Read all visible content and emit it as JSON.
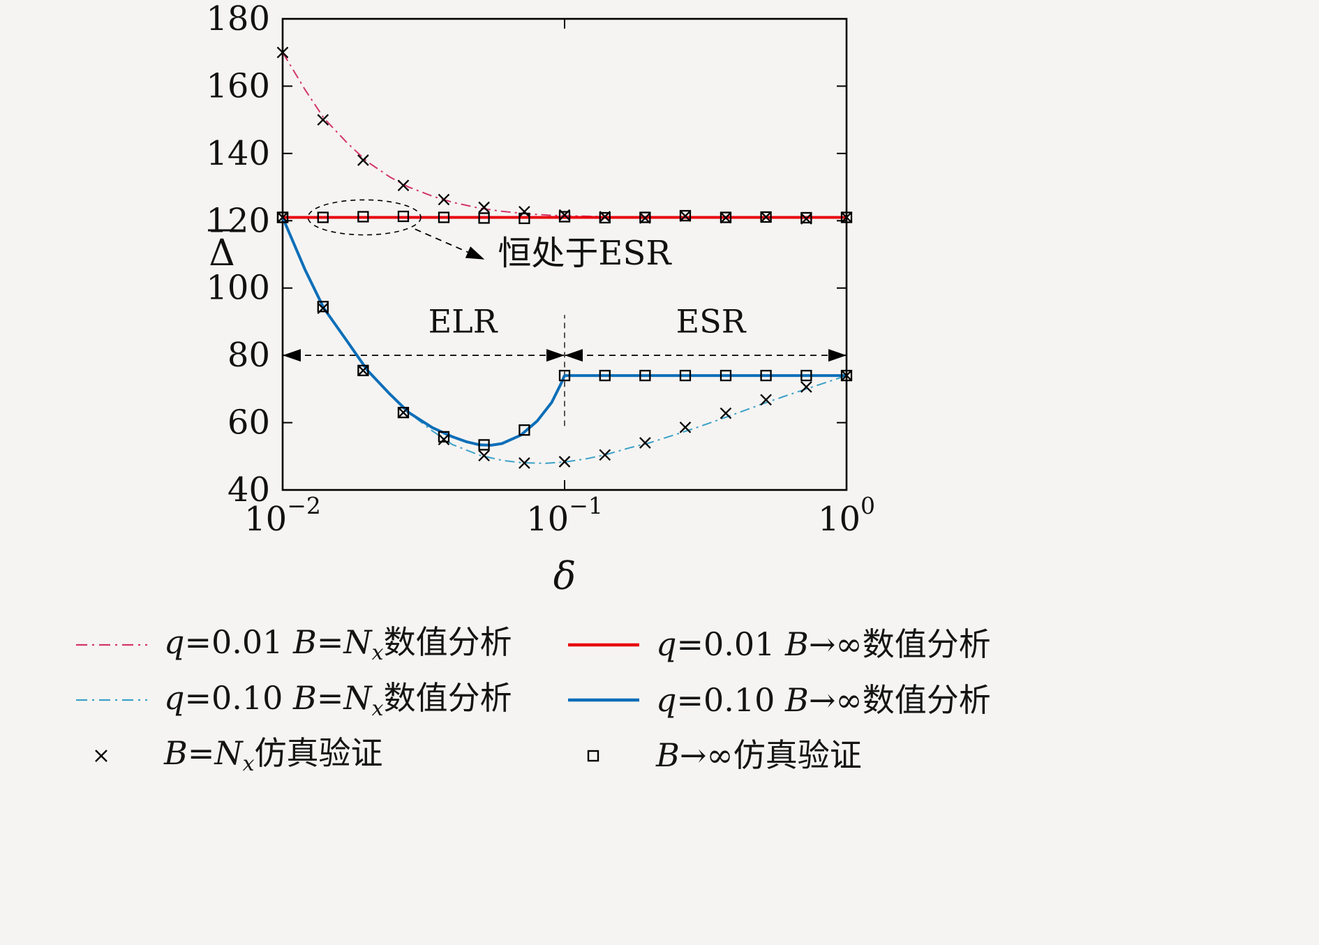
{
  "colors": {
    "background": "#f5f4f2",
    "red_solid": "#e8000b",
    "red_dashdot": "#d4356b",
    "blue_solid": "#0d6eb8",
    "blue_dashdot": "#3aa0c8",
    "marker": "#000000"
  },
  "chart_data": {
    "type": "line",
    "title": "",
    "xlabel": "δ",
    "ylabel": "Δ̄",
    "x_scale": "log",
    "xlim": [
      0.01,
      1.0
    ],
    "ylim": [
      40,
      180
    ],
    "grid": false,
    "legend_position": "below",
    "x_ticks": [
      {
        "value": 0.01,
        "base": "10",
        "exp": "−2"
      },
      {
        "value": 0.1,
        "base": "10",
        "exp": "−1"
      },
      {
        "value": 1.0,
        "base": "10",
        "exp": "0"
      }
    ],
    "y_ticks": [
      40,
      60,
      80,
      100,
      120,
      140,
      160,
      180
    ],
    "series": [
      {
        "name": "q=0.01 B=Nx 数值分析",
        "kind": "line",
        "dash": "dashdot",
        "color": "#d4356b",
        "width": 2,
        "x": [
          0.01,
          0.012,
          0.014,
          0.017,
          0.02,
          0.024,
          0.028,
          0.034,
          0.04,
          0.05,
          0.06,
          0.075,
          0.09,
          0.11,
          0.14,
          0.2,
          0.3,
          0.5,
          0.7,
          1.0
        ],
        "y": [
          170,
          159,
          150.5,
          143,
          137.5,
          133,
          130,
          127.3,
          125.5,
          123.7,
          122.8,
          122,
          121.6,
          121.4,
          121.2,
          121.1,
          121,
          121,
          121,
          121
        ]
      },
      {
        "name": "q=0.01 B→∞ 数值分析",
        "kind": "line",
        "dash": "solid",
        "color": "#e8000b",
        "width": 4,
        "x": [
          0.01,
          1.0
        ],
        "y": [
          121,
          121
        ]
      },
      {
        "name": "q=0.10 B=Nx 数值分析",
        "kind": "line",
        "dash": "dashdot",
        "color": "#3aa0c8",
        "width": 2,
        "x": [
          0.01,
          0.012,
          0.014,
          0.017,
          0.02,
          0.024,
          0.028,
          0.034,
          0.04,
          0.05,
          0.06,
          0.07,
          0.085,
          0.1,
          0.12,
          0.14,
          0.17,
          0.2,
          0.25,
          0.3,
          0.4,
          0.5,
          0.6,
          0.75,
          0.85,
          1.0
        ],
        "y": [
          121,
          105.5,
          94,
          84,
          75.5,
          68.5,
          63,
          57.5,
          53.5,
          50.3,
          48.8,
          48.1,
          47.9,
          48.3,
          49.3,
          50.5,
          52.5,
          54,
          56.6,
          58.8,
          62.5,
          65.5,
          67.8,
          70.5,
          72,
          74
        ]
      },
      {
        "name": "q=0.10 B→∞ 数值分析",
        "kind": "line",
        "dash": "solid",
        "color": "#0d6eb8",
        "width": 4,
        "x": [
          0.01,
          0.012,
          0.014,
          0.017,
          0.02,
          0.024,
          0.028,
          0.034,
          0.04,
          0.045,
          0.05,
          0.055,
          0.06,
          0.07,
          0.08,
          0.09,
          0.097,
          0.1,
          0.15,
          0.3,
          0.6,
          1.0
        ],
        "y": [
          121,
          105.5,
          94,
          84,
          75.5,
          68.5,
          63,
          58.5,
          55.8,
          54.3,
          53.4,
          53.3,
          53.8,
          56.3,
          60.5,
          66,
          71.5,
          74,
          74,
          74,
          74,
          74
        ]
      },
      {
        "name": "B=Nx 仿真验证 (q=0.01)",
        "kind": "scatter",
        "marker": "x",
        "color": "#000000",
        "x": [
          0.01,
          0.0139,
          0.0193,
          0.0268,
          0.0373,
          0.0518,
          0.072,
          0.1,
          0.139,
          0.193,
          0.268,
          0.373,
          0.518,
          0.72,
          1.0
        ],
        "y": [
          170,
          150,
          138,
          130.5,
          126.3,
          124,
          122.7,
          121.7,
          121.2,
          120.8,
          121.4,
          120.9,
          121.1,
          120.6,
          121
        ]
      },
      {
        "name": "B=Nx 仿真验证 (q=0.10)",
        "kind": "scatter",
        "marker": "x",
        "color": "#000000",
        "x": [
          0.01,
          0.0139,
          0.0193,
          0.0268,
          0.0373,
          0.0518,
          0.072,
          0.1,
          0.139,
          0.193,
          0.268,
          0.373,
          0.518,
          0.72,
          1.0
        ],
        "y": [
          121,
          94,
          75.5,
          63,
          55,
          50.2,
          48,
          48.4,
          50.4,
          54,
          58.6,
          62.8,
          66.8,
          70.6,
          74
        ]
      },
      {
        "name": "B→∞ 仿真验证 (q=0.01)",
        "kind": "scatter",
        "marker": "square",
        "color": "#000000",
        "x": [
          0.01,
          0.0139,
          0.0193,
          0.0268,
          0.0373,
          0.0518,
          0.072,
          0.1,
          0.139,
          0.193,
          0.268,
          0.373,
          0.518,
          0.72,
          1.0
        ],
        "y": [
          121,
          121,
          121.2,
          121.3,
          121,
          120.8,
          120.7,
          121.2,
          120.9,
          121,
          121.5,
          121,
          121.1,
          120.9,
          121
        ]
      },
      {
        "name": "B→∞ 仿真验证 (q=0.10)",
        "kind": "scatter",
        "marker": "square",
        "color": "#000000",
        "x": [
          0.01,
          0.0139,
          0.0193,
          0.0268,
          0.0373,
          0.0518,
          0.072,
          0.1,
          0.139,
          0.193,
          0.268,
          0.373,
          0.518,
          0.72,
          1.0
        ],
        "y": [
          121,
          94.5,
          75.5,
          63,
          55.8,
          53.4,
          57.8,
          74,
          74,
          74,
          74,
          74,
          74,
          74,
          74
        ]
      }
    ],
    "annotations": {
      "ellipse": {
        "cx": 0.0195,
        "cy": 121,
        "rx_decades": 0.2,
        "ry_units": 5.2
      },
      "callout": {
        "from": [
          0.0295,
          117.5
        ],
        "to": [
          0.052,
          108.5
        ],
        "text": "恒处于ESR",
        "text_at": [
          0.058,
          107.0
        ]
      },
      "region_arrows": [
        {
          "x1": 0.01,
          "x2": 0.1,
          "y": 80,
          "label": "ELR",
          "label_x": 0.0435,
          "label_y": 86.8
        },
        {
          "x1": 0.1,
          "x2": 1.0,
          "y": 80,
          "label": "ESR",
          "label_x": 0.33,
          "label_y": 86.8
        }
      ],
      "vline": {
        "x": 0.1,
        "y1": 59,
        "y2": 92
      }
    }
  },
  "legend": {
    "rows": [
      [
        {
          "sample": {
            "kind": "line",
            "dash": "dashdot",
            "color": "#d4356b"
          },
          "segments": [
            {
              "t": "q",
              "s": "i"
            },
            {
              "t": "=0.01 ",
              "s": "p"
            },
            {
              "t": "B",
              "s": "i"
            },
            {
              "t": "=",
              "s": "p"
            },
            {
              "t": "N",
              "s": "i"
            },
            {
              "t": "x",
              "s": "sub"
            },
            {
              "t": "数值分析",
              "s": "cjk"
            }
          ]
        },
        {
          "sample": {
            "kind": "line",
            "dash": "solid",
            "color": "#e8000b"
          },
          "segments": [
            {
              "t": "q",
              "s": "i"
            },
            {
              "t": "=0.01 ",
              "s": "p"
            },
            {
              "t": "B",
              "s": "i"
            },
            {
              "t": "→∞",
              "s": "p"
            },
            {
              "t": "数值分析",
              "s": "cjk"
            }
          ]
        }
      ],
      [
        {
          "sample": {
            "kind": "line",
            "dash": "dashdot",
            "color": "#3aa0c8"
          },
          "segments": [
            {
              "t": "q",
              "s": "i"
            },
            {
              "t": "=0.10 ",
              "s": "p"
            },
            {
              "t": "B",
              "s": "i"
            },
            {
              "t": "=",
              "s": "p"
            },
            {
              "t": "N",
              "s": "i"
            },
            {
              "t": "x",
              "s": "sub"
            },
            {
              "t": "数值分析",
              "s": "cjk"
            }
          ]
        },
        {
          "sample": {
            "kind": "line",
            "dash": "solid",
            "color": "#0d6eb8"
          },
          "segments": [
            {
              "t": "q",
              "s": "i"
            },
            {
              "t": "=0.10 ",
              "s": "p"
            },
            {
              "t": "B",
              "s": "i"
            },
            {
              "t": "→∞",
              "s": "p"
            },
            {
              "t": "数值分析",
              "s": "cjk"
            }
          ]
        }
      ],
      [
        {
          "sample": {
            "kind": "marker",
            "marker": "x",
            "color": "#000000"
          },
          "segments": [
            {
              "t": "B",
              "s": "i"
            },
            {
              "t": "=",
              "s": "p"
            },
            {
              "t": "N",
              "s": "i"
            },
            {
              "t": "x",
              "s": "sub"
            },
            {
              "t": "仿真验证",
              "s": "cjk"
            }
          ]
        },
        {
          "sample": {
            "kind": "marker",
            "marker": "square",
            "color": "#000000"
          },
          "segments": [
            {
              "t": "B",
              "s": "i"
            },
            {
              "t": "→∞",
              "s": "p"
            },
            {
              "t": "仿真验证",
              "s": "cjk"
            }
          ]
        }
      ]
    ]
  }
}
